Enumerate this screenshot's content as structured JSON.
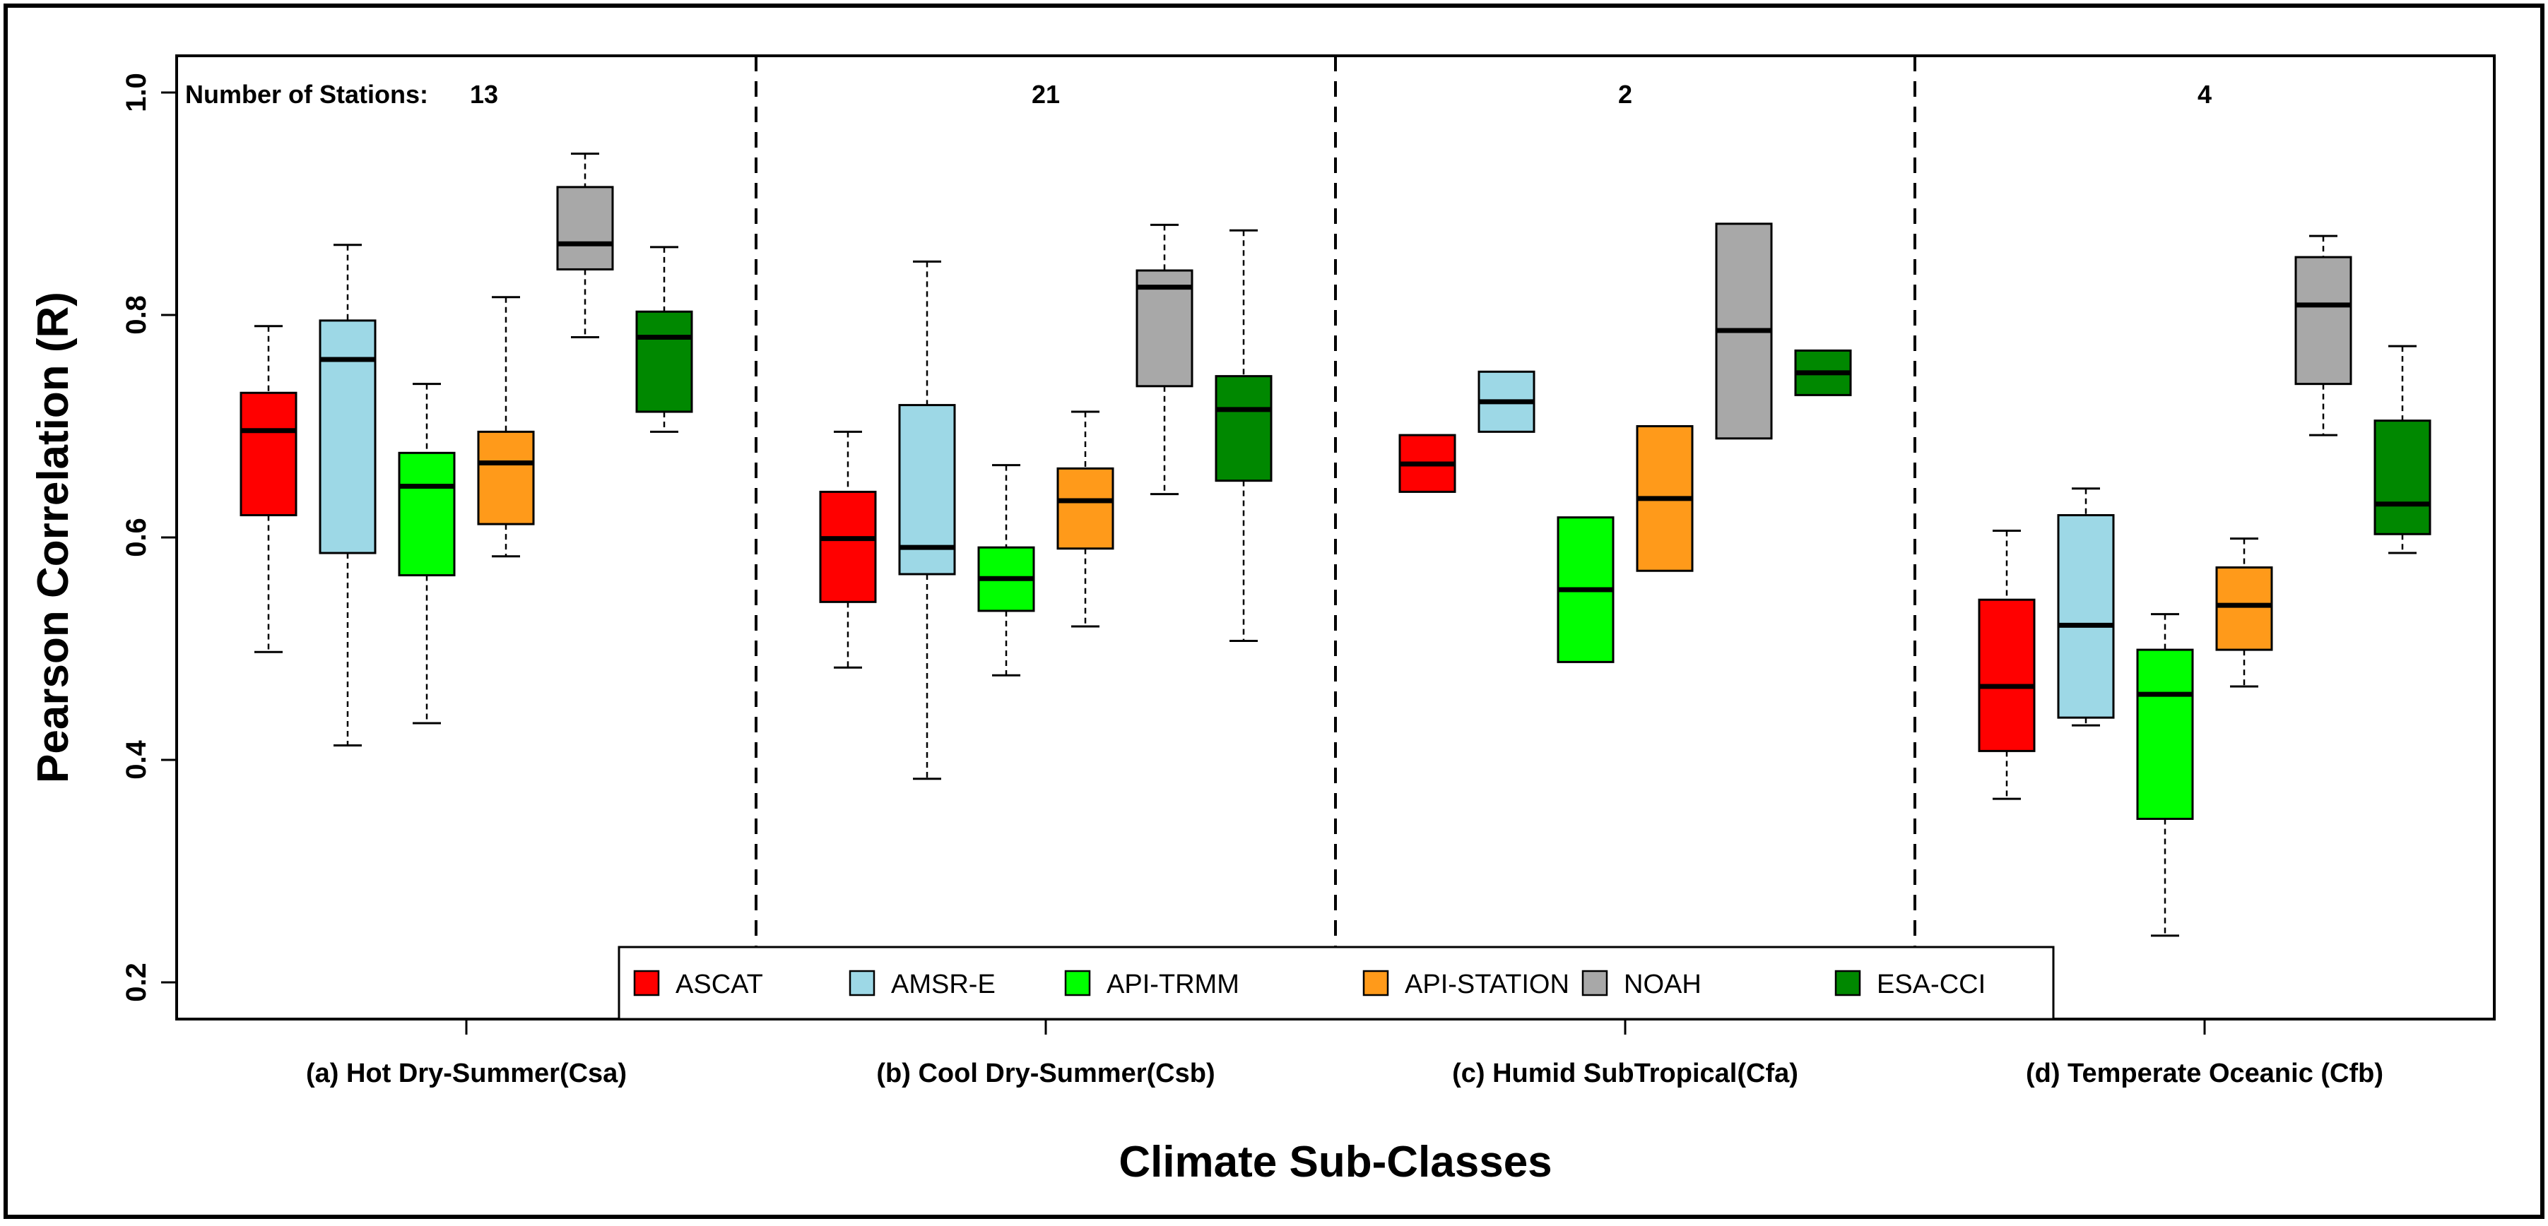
{
  "chart_data": {
    "type": "boxplot",
    "xlabel": "Climate Sub-Classes",
    "ylabel": "Pearson Correlation (R)",
    "ylim": [
      0.17,
      1.03
    ],
    "yticks": [
      "0.2",
      "0.4",
      "0.6",
      "0.8",
      "1.0"
    ],
    "ytick_values": [
      0.2,
      0.4,
      0.6,
      0.8,
      1.0
    ],
    "stations_prefix": "Number of Stations:",
    "legend_position": "bottom-center",
    "series": [
      {
        "name": "ASCAT",
        "color": "#ff0000"
      },
      {
        "name": "AMSR-E",
        "color": "#9dd8e6"
      },
      {
        "name": "API-TRMM",
        "color": "#00ff00"
      },
      {
        "name": "API-STATION",
        "color": "#ff9a1a"
      },
      {
        "name": "NOAH",
        "color": "#a8a8a8"
      },
      {
        "name": "ESA-CCI",
        "color": "#008800"
      }
    ],
    "groups": [
      {
        "label": "(a) Hot Dry-Summer(Csa)",
        "stations": "13",
        "boxes": [
          {
            "min": 0.497,
            "q1": 0.62,
            "median": 0.696,
            "q3": 0.73,
            "max": 0.79
          },
          {
            "min": 0.413,
            "q1": 0.586,
            "median": 0.76,
            "q3": 0.795,
            "max": 0.863
          },
          {
            "min": 0.433,
            "q1": 0.566,
            "median": 0.646,
            "q3": 0.676,
            "max": 0.738
          },
          {
            "min": 0.583,
            "q1": 0.612,
            "median": 0.667,
            "q3": 0.695,
            "max": 0.816
          },
          {
            "min": 0.78,
            "q1": 0.841,
            "median": 0.864,
            "q3": 0.915,
            "max": 0.945
          },
          {
            "min": 0.695,
            "q1": 0.713,
            "median": 0.78,
            "q3": 0.803,
            "max": 0.861
          }
        ]
      },
      {
        "label": "(b) Cool Dry-Summer(Csb)",
        "stations": "21",
        "boxes": [
          {
            "min": 0.483,
            "q1": 0.542,
            "median": 0.599,
            "q3": 0.641,
            "max": 0.695
          },
          {
            "min": 0.383,
            "q1": 0.567,
            "median": 0.591,
            "q3": 0.719,
            "max": 0.848
          },
          {
            "min": 0.476,
            "q1": 0.534,
            "median": 0.563,
            "q3": 0.591,
            "max": 0.665
          },
          {
            "min": 0.52,
            "q1": 0.59,
            "median": 0.633,
            "q3": 0.662,
            "max": 0.713
          },
          {
            "min": 0.639,
            "q1": 0.736,
            "median": 0.825,
            "q3": 0.84,
            "max": 0.881
          },
          {
            "min": 0.507,
            "q1": 0.651,
            "median": 0.715,
            "q3": 0.745,
            "max": 0.876
          }
        ]
      },
      {
        "label": "(c) Humid SubTropical(Cfa)",
        "stations": "2",
        "boxes": [
          {
            "min": 0.641,
            "q1": 0.641,
            "median": 0.666,
            "q3": 0.692,
            "max": 0.692
          },
          {
            "min": 0.695,
            "q1": 0.695,
            "median": 0.722,
            "q3": 0.749,
            "max": 0.749
          },
          {
            "min": 0.488,
            "q1": 0.488,
            "median": 0.553,
            "q3": 0.618,
            "max": 0.618
          },
          {
            "min": 0.57,
            "q1": 0.57,
            "median": 0.635,
            "q3": 0.7,
            "max": 0.7
          },
          {
            "min": 0.689,
            "q1": 0.689,
            "median": 0.786,
            "q3": 0.882,
            "max": 0.882
          },
          {
            "min": 0.728,
            "q1": 0.728,
            "median": 0.748,
            "q3": 0.768,
            "max": 0.768
          }
        ]
      },
      {
        "label": "(d) Temperate Oceanic (Cfb)",
        "stations": "4",
        "boxes": [
          {
            "min": 0.365,
            "q1": 0.408,
            "median": 0.466,
            "q3": 0.544,
            "max": 0.606
          },
          {
            "min": 0.431,
            "q1": 0.438,
            "median": 0.521,
            "q3": 0.62,
            "max": 0.644
          },
          {
            "min": 0.242,
            "q1": 0.347,
            "median": 0.459,
            "q3": 0.499,
            "max": 0.531
          },
          {
            "min": 0.466,
            "q1": 0.499,
            "median": 0.539,
            "q3": 0.573,
            "max": 0.599
          },
          {
            "min": 0.692,
            "q1": 0.738,
            "median": 0.809,
            "q3": 0.852,
            "max": 0.871
          },
          {
            "min": 0.586,
            "q1": 0.603,
            "median": 0.63,
            "q3": 0.705,
            "max": 0.772
          }
        ]
      }
    ]
  }
}
